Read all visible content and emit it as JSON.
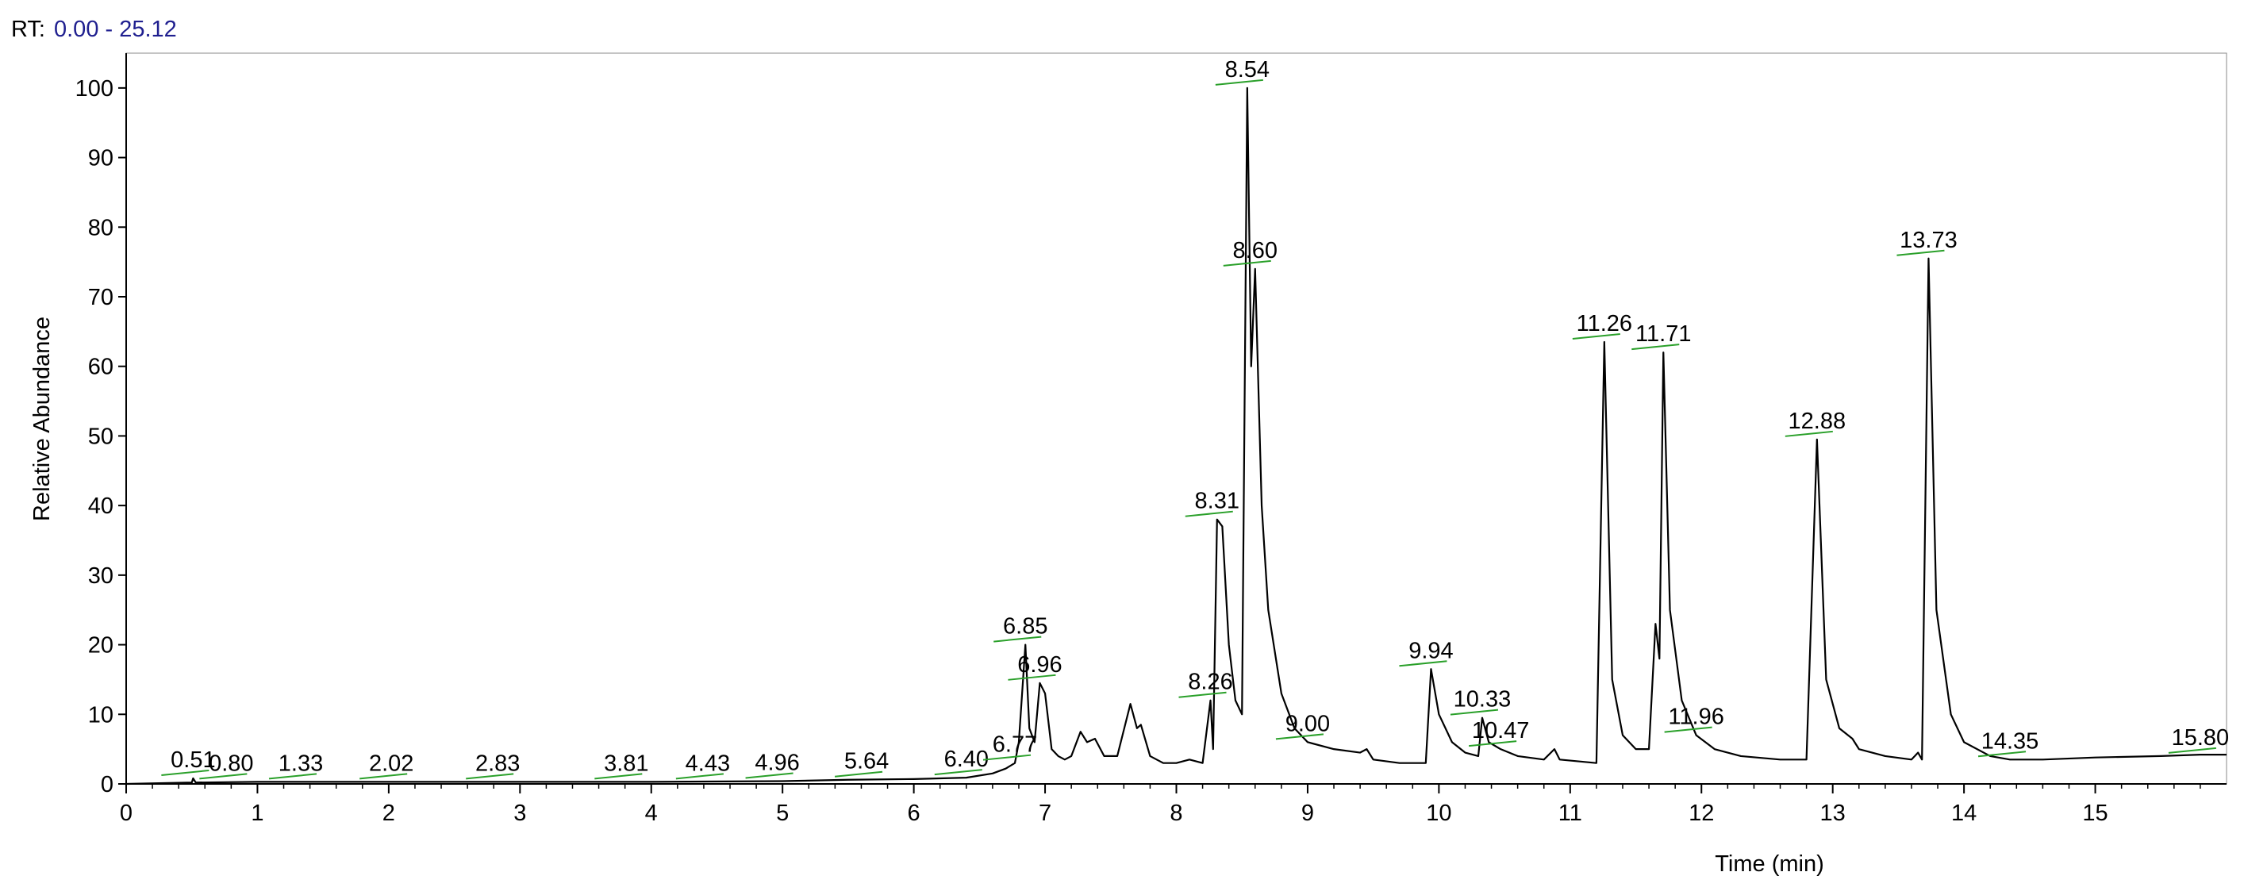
{
  "chart_data": {
    "type": "line",
    "rt_prefix": "RT:",
    "rt_range": "0.00 - 25.12",
    "x_label": "Time (min)",
    "y_label": "Relative Abundance",
    "color": "#000000",
    "baseline_marker_color": "#2aa02a",
    "xlim": [
      0,
      16
    ],
    "ylim": [
      0,
      105
    ],
    "xticks": [
      0,
      1,
      2,
      3,
      4,
      5,
      6,
      7,
      8,
      9,
      10,
      11,
      12,
      13,
      14,
      15
    ],
    "yticks": [
      0,
      10,
      20,
      30,
      40,
      50,
      60,
      70,
      80,
      90,
      100
    ],
    "x": [
      0,
      0.5,
      0.51,
      0.53,
      1.0,
      2.0,
      3.0,
      4.0,
      5.0,
      5.5,
      6.0,
      6.4,
      6.6,
      6.7,
      6.77,
      6.8,
      6.85,
      6.88,
      6.92,
      6.96,
      7.0,
      7.05,
      7.1,
      7.15,
      7.2,
      7.27,
      7.32,
      7.38,
      7.45,
      7.55,
      7.65,
      7.7,
      7.73,
      7.8,
      7.9,
      8.0,
      8.1,
      8.2,
      8.26,
      8.28,
      8.31,
      8.35,
      8.4,
      8.45,
      8.5,
      8.54,
      8.57,
      8.6,
      8.65,
      8.7,
      8.8,
      8.9,
      9.0,
      9.2,
      9.4,
      9.45,
      9.5,
      9.7,
      9.9,
      9.94,
      10.0,
      10.1,
      10.2,
      10.3,
      10.33,
      10.38,
      10.47,
      10.6,
      10.8,
      10.88,
      10.92,
      11.2,
      11.26,
      11.32,
      11.4,
      11.5,
      11.6,
      11.65,
      11.68,
      11.71,
      11.76,
      11.85,
      11.96,
      12.1,
      12.3,
      12.6,
      12.8,
      12.88,
      12.95,
      13.05,
      13.15,
      13.2,
      13.4,
      13.6,
      13.65,
      13.68,
      13.73,
      13.79,
      13.9,
      14.0,
      14.2,
      14.35,
      14.6,
      15.0,
      15.5,
      15.8,
      16.0
    ],
    "values": [
      0,
      0.2,
      0.8,
      0.2,
      0.3,
      0.3,
      0.3,
      0.3,
      0.4,
      0.6,
      0.7,
      0.9,
      1.5,
      2.2,
      3,
      6,
      20,
      8,
      6,
      14.5,
      13,
      5,
      4,
      3.5,
      4,
      7.5,
      6,
      6.5,
      4,
      4,
      11.5,
      8,
      8.5,
      4,
      3,
      3,
      3.5,
      3,
      12,
      5,
      38,
      37,
      20,
      12,
      10,
      100,
      60,
      74,
      40,
      25,
      13,
      8,
      6,
      5,
      4.5,
      5,
      3.5,
      3,
      3,
      16.5,
      10,
      6,
      4.5,
      4,
      9.5,
      6,
      5,
      4,
      3.5,
      5,
      3.5,
      3,
      63.5,
      15,
      7,
      5,
      5,
      23,
      18,
      62,
      25,
      12,
      7,
      5,
      4,
      3.5,
      3.5,
      49.5,
      15,
      8,
      6.5,
      5,
      4,
      3.5,
      4.5,
      3.5,
      75.5,
      25,
      10,
      6,
      4,
      3.5,
      3.5,
      3.8,
      4,
      4.2,
      4.2
    ],
    "peaks": [
      {
        "x": 0.51,
        "label": "0.51",
        "y": 0.8
      },
      {
        "x": 0.8,
        "label": "0.80",
        "y": 0.3
      },
      {
        "x": 1.33,
        "label": "1.33",
        "y": 0.3
      },
      {
        "x": 2.02,
        "label": "2.02",
        "y": 0.3
      },
      {
        "x": 2.83,
        "label": "2.83",
        "y": 0.3
      },
      {
        "x": 3.81,
        "label": "3.81",
        "y": 0.3
      },
      {
        "x": 4.43,
        "label": "4.43",
        "y": 0.3
      },
      {
        "x": 4.96,
        "label": "4.96",
        "y": 0.4
      },
      {
        "x": 5.64,
        "label": "5.64",
        "y": 0.6
      },
      {
        "x": 6.4,
        "label": "6.40",
        "y": 0.9
      },
      {
        "x": 6.77,
        "label": "6.77",
        "y": 3
      },
      {
        "x": 6.85,
        "label": "6.85",
        "y": 20
      },
      {
        "x": 6.96,
        "label": "6.96",
        "y": 14.5
      },
      {
        "x": 8.26,
        "label": "8.26",
        "y": 12
      },
      {
        "x": 8.31,
        "label": "8.31",
        "y": 38
      },
      {
        "x": 8.54,
        "label": "8.54",
        "y": 100
      },
      {
        "x": 8.6,
        "label": "8.60",
        "y": 74
      },
      {
        "x": 9.0,
        "label": "9.00",
        "y": 6
      },
      {
        "x": 9.94,
        "label": "9.94",
        "y": 16.5
      },
      {
        "x": 10.33,
        "label": "10.33",
        "y": 9.5
      },
      {
        "x": 10.47,
        "label": "10.47",
        "y": 5
      },
      {
        "x": 11.26,
        "label": "11.26",
        "y": 63.5
      },
      {
        "x": 11.71,
        "label": "11.71",
        "y": 62
      },
      {
        "x": 11.96,
        "label": "11.96",
        "y": 7
      },
      {
        "x": 12.88,
        "label": "12.88",
        "y": 49.5
      },
      {
        "x": 13.73,
        "label": "13.73",
        "y": 75.5
      },
      {
        "x": 14.35,
        "label": "14.35",
        "y": 3.5
      },
      {
        "x": 15.8,
        "label": "15.80",
        "y": 4
      }
    ]
  }
}
